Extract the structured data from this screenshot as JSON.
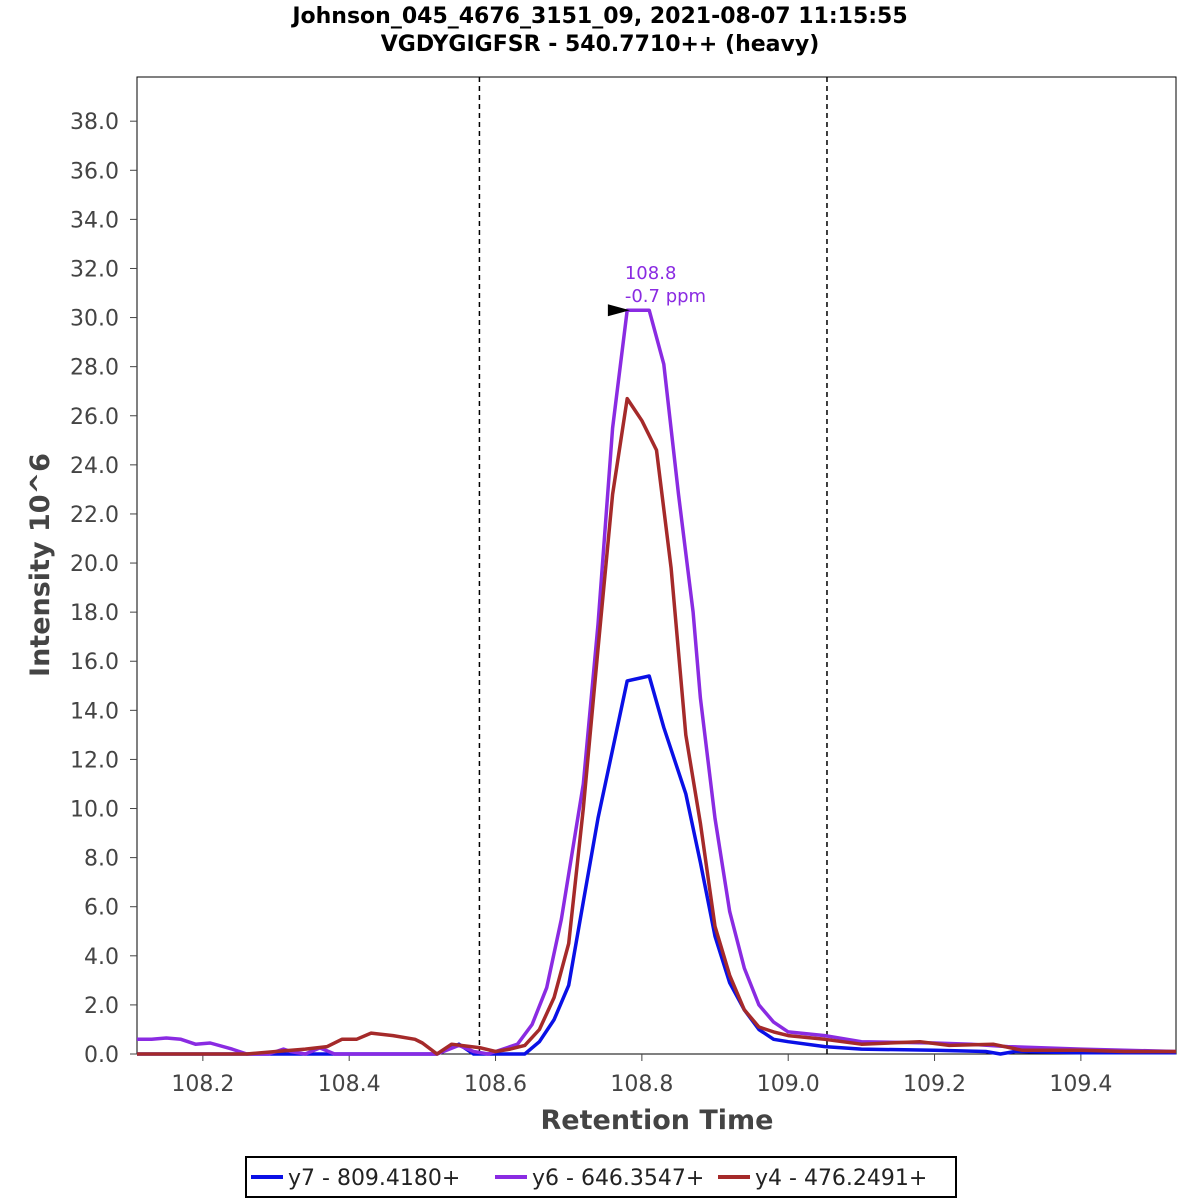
{
  "chart_data": {
    "type": "line",
    "title_line1": "Johnson_045_4676_3151_09, 2021-08-07 11:15:55",
    "title_line2": "VGDYGIGFSR - 540.7710++ (heavy)",
    "xlabel": "Retention Time",
    "ylabel": "Intensity 10^6",
    "xlim": [
      108.11,
      109.53
    ],
    "ylim": [
      0,
      39.8
    ],
    "x_ticks": [
      108.2,
      108.4,
      108.6,
      108.8,
      109.0,
      109.2,
      109.4
    ],
    "x_tick_labels": [
      "108.2",
      "108.4",
      "108.6",
      "108.8",
      "109.0",
      "109.2",
      "109.4"
    ],
    "y_ticks": [
      0,
      2,
      4,
      6,
      8,
      10,
      12,
      14,
      16,
      18,
      20,
      22,
      24,
      26,
      28,
      30,
      32,
      34,
      36,
      38
    ],
    "y_tick_labels": [
      "0.0",
      "2.0",
      "4.0",
      "6.0",
      "8.0",
      "10.0",
      "12.0",
      "14.0",
      "16.0",
      "18.0",
      "20.0",
      "22.0",
      "24.0",
      "26.0",
      "28.0",
      "30.0",
      "32.0",
      "34.0",
      "36.0",
      "38.0"
    ],
    "grid": false,
    "boundaries": [
      108.578,
      109.053
    ],
    "annotation": {
      "x": 108.8,
      "y": 30.3,
      "line1": "108.8",
      "line2": "-0.7 ppm",
      "color": "#8a2be2"
    },
    "series": [
      {
        "name": "y7 - 809.4180+",
        "color": "#0a10e6",
        "points": [
          [
            108.11,
            0
          ],
          [
            108.2,
            0
          ],
          [
            108.3,
            0
          ],
          [
            108.4,
            0
          ],
          [
            108.52,
            0
          ],
          [
            108.55,
            0.4
          ],
          [
            108.57,
            0
          ],
          [
            108.64,
            0
          ],
          [
            108.66,
            0.5
          ],
          [
            108.68,
            1.4
          ],
          [
            108.7,
            2.8
          ],
          [
            108.72,
            6.2
          ],
          [
            108.74,
            9.6
          ],
          [
            108.76,
            12.4
          ],
          [
            108.78,
            15.2
          ],
          [
            108.81,
            15.4
          ],
          [
            108.83,
            13.3
          ],
          [
            108.86,
            10.6
          ],
          [
            108.88,
            7.8
          ],
          [
            108.9,
            4.8
          ],
          [
            108.92,
            2.9
          ],
          [
            108.94,
            1.8
          ],
          [
            108.96,
            1.0
          ],
          [
            108.98,
            0.6
          ],
          [
            109.0,
            0.5
          ],
          [
            109.05,
            0.3
          ],
          [
            109.1,
            0.2
          ],
          [
            109.2,
            0.15
          ],
          [
            109.27,
            0.1
          ],
          [
            109.29,
            0
          ],
          [
            109.31,
            0.1
          ],
          [
            109.4,
            0.05
          ],
          [
            109.53,
            0.05
          ]
        ]
      },
      {
        "name": "y6 - 646.3547+",
        "color": "#8a2be2",
        "points": [
          [
            108.11,
            0.6
          ],
          [
            108.13,
            0.6
          ],
          [
            108.15,
            0.65
          ],
          [
            108.17,
            0.6
          ],
          [
            108.19,
            0.4
          ],
          [
            108.21,
            0.45
          ],
          [
            108.24,
            0.2
          ],
          [
            108.26,
            0
          ],
          [
            108.29,
            0
          ],
          [
            108.31,
            0.2
          ],
          [
            108.32,
            0.1
          ],
          [
            108.34,
            0
          ],
          [
            108.36,
            0.25
          ],
          [
            108.38,
            0
          ],
          [
            108.52,
            0
          ],
          [
            108.55,
            0.35
          ],
          [
            108.57,
            0.1
          ],
          [
            108.59,
            0
          ],
          [
            108.61,
            0.2
          ],
          [
            108.63,
            0.4
          ],
          [
            108.65,
            1.2
          ],
          [
            108.67,
            2.7
          ],
          [
            108.69,
            5.5
          ],
          [
            108.72,
            11.0
          ],
          [
            108.74,
            17.5
          ],
          [
            108.76,
            25.5
          ],
          [
            108.78,
            30.3
          ],
          [
            108.81,
            30.3
          ],
          [
            108.83,
            28.1
          ],
          [
            108.85,
            22.8
          ],
          [
            108.87,
            18.0
          ],
          [
            108.88,
            14.5
          ],
          [
            108.9,
            9.6
          ],
          [
            108.92,
            5.8
          ],
          [
            108.94,
            3.5
          ],
          [
            108.96,
            2.0
          ],
          [
            108.98,
            1.3
          ],
          [
            109.0,
            0.9
          ],
          [
            109.05,
            0.75
          ],
          [
            109.1,
            0.5
          ],
          [
            109.2,
            0.45
          ],
          [
            109.25,
            0.4
          ],
          [
            109.3,
            0.3
          ],
          [
            109.4,
            0.2
          ],
          [
            109.53,
            0.1
          ]
        ]
      },
      {
        "name": "y4 - 476.2491+",
        "color": "#a52a2a",
        "points": [
          [
            108.11,
            0
          ],
          [
            108.26,
            0
          ],
          [
            108.3,
            0.1
          ],
          [
            108.34,
            0.2
          ],
          [
            108.37,
            0.3
          ],
          [
            108.39,
            0.6
          ],
          [
            108.41,
            0.6
          ],
          [
            108.43,
            0.85
          ],
          [
            108.46,
            0.75
          ],
          [
            108.49,
            0.6
          ],
          [
            108.5,
            0.45
          ],
          [
            108.52,
            0
          ],
          [
            108.54,
            0.4
          ],
          [
            108.58,
            0.25
          ],
          [
            108.6,
            0.1
          ],
          [
            108.62,
            0.2
          ],
          [
            108.64,
            0.35
          ],
          [
            108.66,
            1.0
          ],
          [
            108.68,
            2.3
          ],
          [
            108.7,
            4.5
          ],
          [
            108.72,
            10.0
          ],
          [
            108.74,
            16.5
          ],
          [
            108.76,
            22.8
          ],
          [
            108.78,
            26.7
          ],
          [
            108.8,
            25.8
          ],
          [
            108.82,
            24.6
          ],
          [
            108.84,
            19.8
          ],
          [
            108.86,
            13.0
          ],
          [
            108.88,
            9.4
          ],
          [
            108.9,
            5.2
          ],
          [
            108.92,
            3.2
          ],
          [
            108.94,
            1.8
          ],
          [
            108.96,
            1.1
          ],
          [
            108.98,
            0.9
          ],
          [
            109.0,
            0.75
          ],
          [
            109.05,
            0.6
          ],
          [
            109.1,
            0.4
          ],
          [
            109.18,
            0.5
          ],
          [
            109.22,
            0.35
          ],
          [
            109.28,
            0.4
          ],
          [
            109.32,
            0.15
          ],
          [
            109.4,
            0.15
          ],
          [
            109.46,
            0.1
          ],
          [
            109.53,
            0.1
          ]
        ]
      }
    ]
  }
}
